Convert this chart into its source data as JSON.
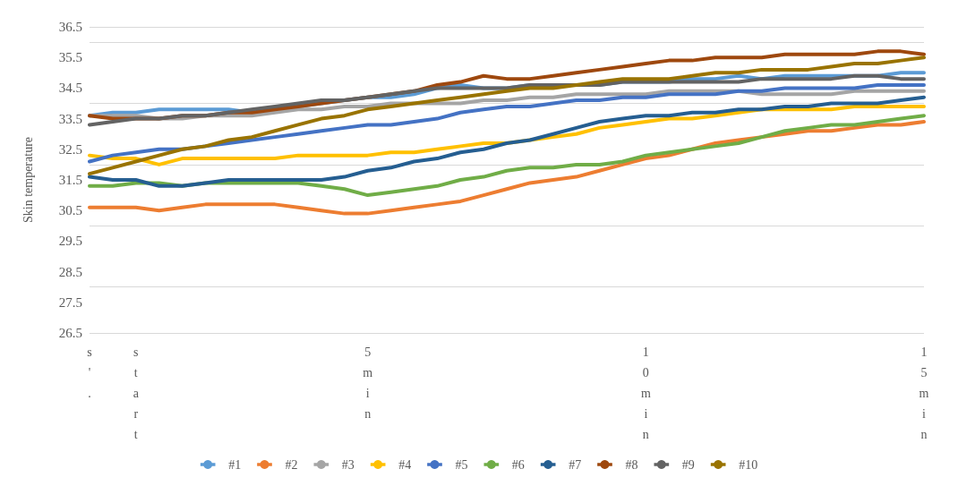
{
  "chart_data": {
    "type": "line",
    "ylabel": "Skin temperature",
    "categories": [
      "s'.",
      null,
      "start",
      null,
      null,
      null,
      null,
      null,
      null,
      null,
      null,
      null,
      "5 min",
      null,
      null,
      null,
      null,
      null,
      null,
      null,
      null,
      null,
      null,
      null,
      "10 min",
      null,
      null,
      null,
      null,
      null,
      null,
      null,
      null,
      null,
      null,
      null,
      "15 min"
    ],
    "ylim": [
      26.5,
      36.5
    ],
    "yticks": [
      26.5,
      27.5,
      28.5,
      29.5,
      30.5,
      31.5,
      32.5,
      33.5,
      34.5,
      35.5,
      36.5
    ],
    "grid": "y",
    "legend": "bottom",
    "marker": "none",
    "line_style": "solid",
    "series": [
      {
        "name": "#1",
        "color": "#5b9bd5",
        "values": [
          33.6,
          33.7,
          33.7,
          33.8,
          33.8,
          33.8,
          33.8,
          33.7,
          33.8,
          33.9,
          34.0,
          34.1,
          34.2,
          34.2,
          34.3,
          34.5,
          34.6,
          34.5,
          34.5,
          34.6,
          34.6,
          34.6,
          34.6,
          34.7,
          34.7,
          34.7,
          34.8,
          34.8,
          34.9,
          34.8,
          34.9,
          34.9,
          34.9,
          34.9,
          34.9,
          35.0,
          35.0
        ]
      },
      {
        "name": "#2",
        "color": "#ed7d31",
        "values": [
          30.6,
          30.6,
          30.6,
          30.5,
          30.6,
          30.7,
          30.7,
          30.7,
          30.7,
          30.6,
          30.5,
          30.4,
          30.4,
          30.5,
          30.6,
          30.7,
          30.8,
          31.0,
          31.2,
          31.4,
          31.5,
          31.6,
          31.8,
          32.0,
          32.2,
          32.3,
          32.5,
          32.7,
          32.8,
          32.9,
          33.0,
          33.1,
          33.1,
          33.2,
          33.3,
          33.3,
          33.4
        ]
      },
      {
        "name": "#3",
        "color": "#a5a5a5",
        "values": [
          33.6,
          33.6,
          33.6,
          33.5,
          33.5,
          33.6,
          33.6,
          33.6,
          33.7,
          33.8,
          33.8,
          33.9,
          33.9,
          34.0,
          34.0,
          34.0,
          34.0,
          34.1,
          34.1,
          34.2,
          34.2,
          34.3,
          34.3,
          34.3,
          34.3,
          34.4,
          34.4,
          34.4,
          34.4,
          34.3,
          34.3,
          34.3,
          34.3,
          34.4,
          34.4,
          34.4,
          34.4
        ]
      },
      {
        "name": "#4",
        "color": "#ffc000",
        "values": [
          32.3,
          32.2,
          32.2,
          32.0,
          32.2,
          32.2,
          32.2,
          32.2,
          32.2,
          32.3,
          32.3,
          32.3,
          32.3,
          32.4,
          32.4,
          32.5,
          32.6,
          32.7,
          32.7,
          32.8,
          32.9,
          33.0,
          33.2,
          33.3,
          33.4,
          33.5,
          33.5,
          33.6,
          33.7,
          33.8,
          33.8,
          33.8,
          33.8,
          33.9,
          33.9,
          33.9,
          33.9
        ]
      },
      {
        "name": "#5",
        "color": "#4472c4",
        "values": [
          32.1,
          32.3,
          32.4,
          32.5,
          32.5,
          32.6,
          32.7,
          32.8,
          32.9,
          33.0,
          33.1,
          33.2,
          33.3,
          33.3,
          33.4,
          33.5,
          33.7,
          33.8,
          33.9,
          33.9,
          34.0,
          34.1,
          34.1,
          34.2,
          34.2,
          34.3,
          34.3,
          34.3,
          34.4,
          34.4,
          34.5,
          34.5,
          34.5,
          34.5,
          34.6,
          34.6,
          34.6
        ]
      },
      {
        "name": "#6",
        "color": "#70ad47",
        "values": [
          31.3,
          31.3,
          31.4,
          31.4,
          31.3,
          31.4,
          31.4,
          31.4,
          31.4,
          31.4,
          31.3,
          31.2,
          31.0,
          31.1,
          31.2,
          31.3,
          31.5,
          31.6,
          31.8,
          31.9,
          31.9,
          32.0,
          32.0,
          32.1,
          32.3,
          32.4,
          32.5,
          32.6,
          32.7,
          32.9,
          33.1,
          33.2,
          33.3,
          33.3,
          33.4,
          33.5,
          33.6
        ]
      },
      {
        "name": "#7",
        "color": "#255e91",
        "values": [
          31.6,
          31.5,
          31.5,
          31.3,
          31.3,
          31.4,
          31.5,
          31.5,
          31.5,
          31.5,
          31.5,
          31.6,
          31.8,
          31.9,
          32.1,
          32.2,
          32.4,
          32.5,
          32.7,
          32.8,
          33.0,
          33.2,
          33.4,
          33.5,
          33.6,
          33.6,
          33.7,
          33.7,
          33.8,
          33.8,
          33.9,
          33.9,
          34.0,
          34.0,
          34.0,
          34.1,
          34.2
        ]
      },
      {
        "name": "#8",
        "color": "#9e480e",
        "values": [
          33.6,
          33.5,
          33.5,
          33.5,
          33.6,
          33.6,
          33.7,
          33.7,
          33.8,
          33.9,
          34.0,
          34.1,
          34.2,
          34.3,
          34.4,
          34.6,
          34.7,
          34.9,
          34.8,
          34.8,
          34.9,
          35.0,
          35.1,
          35.2,
          35.3,
          35.4,
          35.4,
          35.5,
          35.5,
          35.5,
          35.6,
          35.6,
          35.6,
          35.6,
          35.7,
          35.7,
          35.6
        ]
      },
      {
        "name": "#9",
        "color": "#636363",
        "values": [
          33.3,
          33.4,
          33.5,
          33.5,
          33.6,
          33.6,
          33.7,
          33.8,
          33.9,
          34.0,
          34.1,
          34.1,
          34.2,
          34.3,
          34.4,
          34.5,
          34.5,
          34.5,
          34.5,
          34.6,
          34.6,
          34.6,
          34.6,
          34.7,
          34.7,
          34.7,
          34.7,
          34.7,
          34.7,
          34.8,
          34.8,
          34.8,
          34.8,
          34.9,
          34.9,
          34.8,
          34.8
        ]
      },
      {
        "name": "#10",
        "color": "#997300",
        "values": [
          31.7,
          31.9,
          32.1,
          32.3,
          32.5,
          32.6,
          32.8,
          32.9,
          33.1,
          33.3,
          33.5,
          33.6,
          33.8,
          33.9,
          34.0,
          34.1,
          34.2,
          34.3,
          34.4,
          34.5,
          34.5,
          34.6,
          34.7,
          34.8,
          34.8,
          34.8,
          34.9,
          35.0,
          35.0,
          35.1,
          35.1,
          35.1,
          35.2,
          35.3,
          35.3,
          35.4,
          35.5
        ]
      }
    ]
  }
}
